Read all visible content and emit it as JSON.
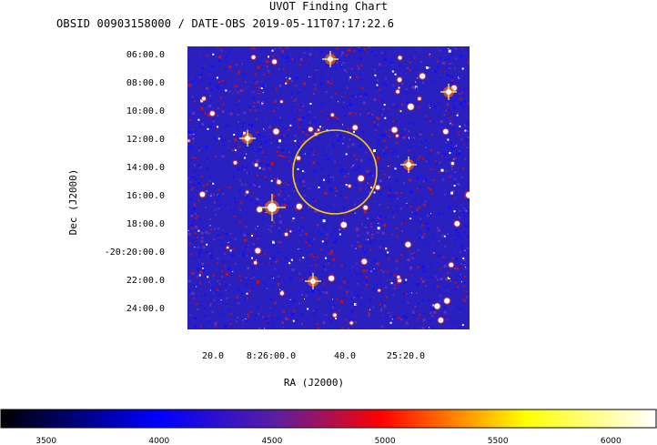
{
  "chart_data": {
    "type": "heatmap",
    "title": "UVOT Finding Chart",
    "subtitle": "OBSID 00903158000 / DATE-OBS 2019-05-11T07:17:22.6",
    "xlabel": "RA (J2000)",
    "ylabel": "Dec (J2000)",
    "x_ticks": [
      "20.0",
      "8:26:00.0",
      "40.0",
      "25:20.0"
    ],
    "y_ticks": [
      "06:00.0",
      "08:00.0",
      "10:00.0",
      "12:00.0",
      "14:00.0",
      "16:00.0",
      "18:00.0",
      "-20:20:00.0",
      "22:00.0",
      "24:00.0"
    ],
    "colorbar": {
      "ticks": [
        3500,
        4000,
        4500,
        5000,
        5500,
        6000
      ],
      "range": [
        3300,
        6200
      ],
      "colormap": [
        "#000000",
        "#0000ff",
        "#ff0000",
        "#ffff00",
        "#ffffff"
      ]
    },
    "overlay": {
      "shape": "circle",
      "color": "#ffd000"
    },
    "background_color": "#2a1fbf",
    "noise_colors": [
      "#1010ff",
      "#6633aa",
      "#cc1111",
      "#ffffff"
    ]
  }
}
